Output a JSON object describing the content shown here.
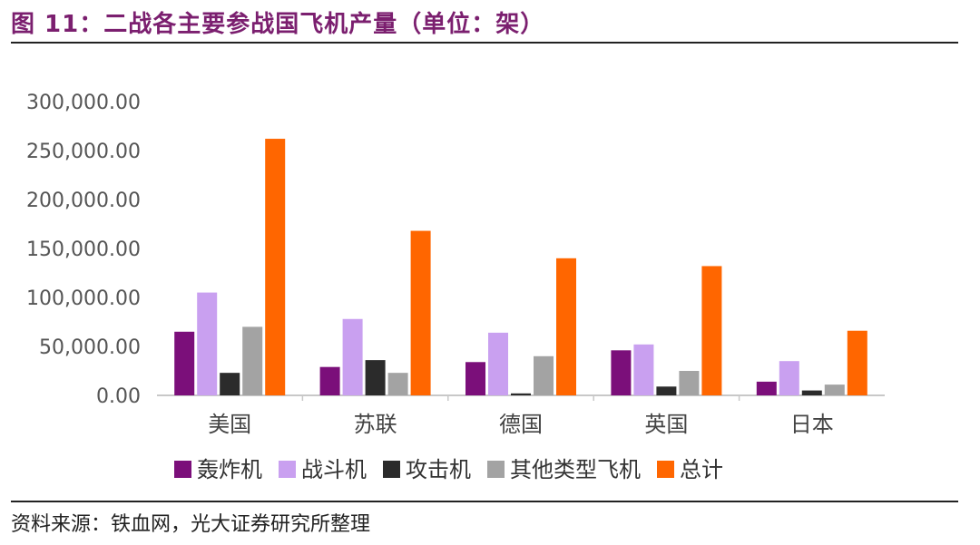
{
  "figure": {
    "title": "图 11：二战各主要参战国飞机产量（单位：架）",
    "source": "资料来源：铁血网，光大证券研究所整理"
  },
  "chart_data": {
    "type": "bar",
    "categories": [
      "美国",
      "苏联",
      "德国",
      "英国",
      "日本"
    ],
    "series": [
      {
        "name": "轰炸机",
        "color": "#7b0f7a",
        "values": [
          65000,
          29000,
          34000,
          46000,
          14000
        ]
      },
      {
        "name": "战斗机",
        "color": "#c9a0f0",
        "values": [
          105000,
          78000,
          64000,
          52000,
          35000
        ]
      },
      {
        "name": "攻击机",
        "color": "#2b2b2b",
        "values": [
          23000,
          36000,
          2000,
          9000,
          5000
        ]
      },
      {
        "name": "其他类型飞机",
        "color": "#a3a3a3",
        "values": [
          70000,
          23000,
          40000,
          25000,
          11000
        ]
      },
      {
        "name": "总计",
        "color": "#ff6600",
        "values": [
          262000,
          168000,
          140000,
          132000,
          66000
        ]
      }
    ],
    "ylim": [
      0,
      300000
    ],
    "yticks": [
      "0.00",
      "50,000.00",
      "100,000.00",
      "150,000.00",
      "200,000.00",
      "250,000.00",
      "300,000.00"
    ],
    "grid": false,
    "legend": "bottom"
  }
}
